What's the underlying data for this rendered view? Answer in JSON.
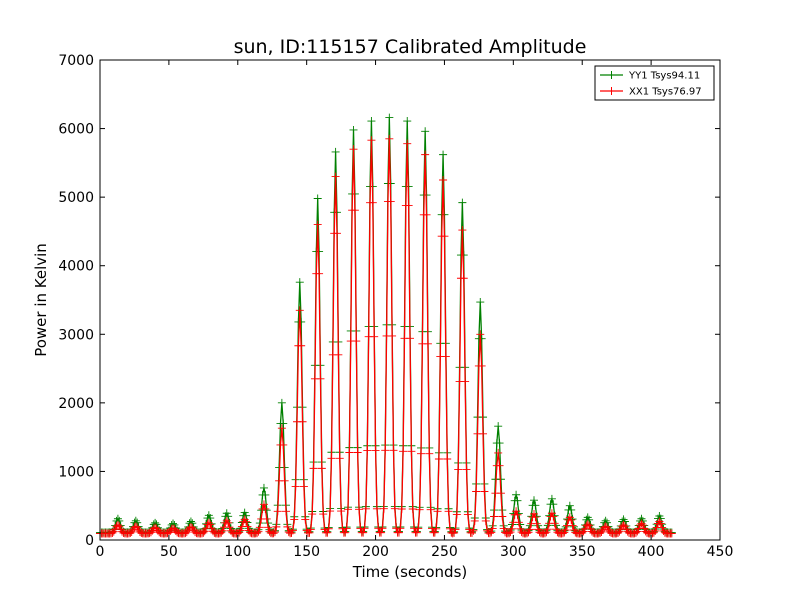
{
  "chart_data": {
    "type": "line",
    "title": "sun, ID:115157 Calibrated Amplitude",
    "xlabel": "Time (seconds)",
    "ylabel": "Power in Kelvin",
    "xlim": [
      0,
      450
    ],
    "ylim": [
      0,
      7000
    ],
    "x_ticks": [
      0,
      50,
      100,
      150,
      200,
      250,
      300,
      350,
      400,
      450
    ],
    "y_ticks": [
      0,
      1000,
      2000,
      3000,
      4000,
      5000,
      6000,
      7000
    ],
    "grid": false,
    "legend_position": "top-right",
    "sample_step_seconds": 1,
    "series": [
      {
        "name": "YY1 Tsys94.11",
        "color": "#008000",
        "marker": "+",
        "baseline": 110,
        "peaks": [
          [
            13,
            310
          ],
          [
            26,
            280
          ],
          [
            40,
            250
          ],
          [
            53,
            240
          ],
          [
            66,
            270
          ],
          [
            79,
            360
          ],
          [
            92,
            390
          ],
          [
            105,
            400
          ],
          [
            119,
            760
          ],
          [
            132,
            2000
          ],
          [
            145,
            3760
          ],
          [
            158,
            4980
          ],
          [
            171,
            5660
          ],
          [
            184,
            5980
          ],
          [
            197,
            6110
          ],
          [
            210,
            6160
          ],
          [
            223,
            6110
          ],
          [
            236,
            5960
          ],
          [
            249,
            5620
          ],
          [
            263,
            4920
          ],
          [
            276,
            3470
          ],
          [
            289,
            1660
          ],
          [
            302,
            660
          ],
          [
            315,
            580
          ],
          [
            328,
            600
          ],
          [
            341,
            500
          ],
          [
            354,
            330
          ],
          [
            367,
            280
          ],
          [
            380,
            300
          ],
          [
            393,
            310
          ],
          [
            406,
            350
          ]
        ]
      },
      {
        "name": "XX1 Tsys76.97",
        "color": "#ff0000",
        "marker": "+",
        "baseline": 95,
        "peaks": [
          [
            13,
            220
          ],
          [
            26,
            200
          ],
          [
            40,
            180
          ],
          [
            53,
            170
          ],
          [
            66,
            190
          ],
          [
            79,
            250
          ],
          [
            92,
            280
          ],
          [
            105,
            300
          ],
          [
            119,
            520
          ],
          [
            132,
            1630
          ],
          [
            145,
            3350
          ],
          [
            158,
            4600
          ],
          [
            171,
            5300
          ],
          [
            184,
            5700
          ],
          [
            197,
            5830
          ],
          [
            210,
            5850
          ],
          [
            223,
            5780
          ],
          [
            236,
            5620
          ],
          [
            249,
            5250
          ],
          [
            263,
            4520
          ],
          [
            276,
            3000
          ],
          [
            289,
            1270
          ],
          [
            302,
            420
          ],
          [
            315,
            380
          ],
          [
            328,
            390
          ],
          [
            341,
            330
          ],
          [
            354,
            230
          ],
          [
            367,
            200
          ],
          [
            380,
            220
          ],
          [
            393,
            240
          ],
          [
            406,
            270
          ]
        ]
      }
    ]
  }
}
